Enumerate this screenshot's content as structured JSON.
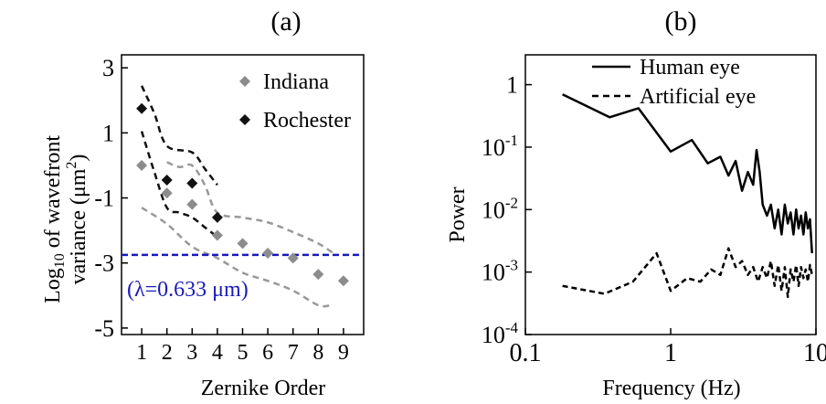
{
  "chart_data": [
    {
      "panel_label": "(a)",
      "type": "scatter",
      "xlabel": "Zernike Order",
      "ylabel_line1_pre": "Log",
      "ylabel_line1_sub": "10",
      "ylabel_line1_post": " of wavefront",
      "ylabel_line2_pre": "variance (μm",
      "ylabel_line2_sup": "2",
      "ylabel_line2_post": ")",
      "xlim": [
        0.2,
        9.8
      ],
      "ylim": [
        -5.2,
        3.4
      ],
      "x_ticks": [
        1,
        2,
        3,
        4,
        5,
        6,
        7,
        8,
        9
      ],
      "y_ticks": [
        3,
        1,
        -1,
        -3,
        -5
      ],
      "legend_position": "top-right",
      "series": [
        {
          "name": "Indiana",
          "marker": "diamond",
          "color": "#8c8c8c",
          "x": [
            1,
            2,
            3,
            4,
            5,
            6,
            7,
            8,
            9
          ],
          "y": [
            0.0,
            -0.85,
            -1.2,
            -2.15,
            -2.4,
            -2.7,
            -2.85,
            -3.35,
            -3.55
          ],
          "band": {
            "color": "#999999",
            "upper": [
              [
                2,
                0.1
              ],
              [
                2.5,
                -0.05
              ],
              [
                3,
                0.0
              ],
              [
                3.5,
                -0.6
              ],
              [
                4,
                -1.45
              ],
              [
                5,
                -1.6
              ],
              [
                6,
                -1.75
              ],
              [
                7,
                -2.05
              ],
              [
                8,
                -2.4
              ],
              [
                8.6,
                -2.7
              ]
            ],
            "lower": [
              [
                1,
                -1.3
              ],
              [
                2,
                -1.8
              ],
              [
                3,
                -2.5
              ],
              [
                4,
                -2.85
              ],
              [
                5,
                -3.3
              ],
              [
                6,
                -3.55
              ],
              [
                7,
                -3.85
              ],
              [
                8,
                -4.3
              ],
              [
                8.5,
                -4.3
              ]
            ]
          }
        },
        {
          "name": "Rochester",
          "marker": "diamond",
          "color": "#111111",
          "x": [
            1,
            2,
            3,
            4
          ],
          "y": [
            1.75,
            -0.45,
            -0.55,
            -1.6
          ],
          "band": {
            "color": "#111111",
            "upper": [
              [
                1,
                2.45
              ],
              [
                1.5,
                1.6
              ],
              [
                2,
                0.6
              ],
              [
                3,
                0.4
              ],
              [
                3.5,
                -0.1
              ],
              [
                4,
                -0.6
              ]
            ],
            "lower": [
              [
                1,
                1.05
              ],
              [
                1.5,
                -0.2
              ],
              [
                2,
                -1.3
              ],
              [
                2.5,
                -1.45
              ],
              [
                3,
                -1.6
              ],
              [
                3.5,
                -1.9
              ],
              [
                4,
                -2.2
              ]
            ]
          }
        }
      ],
      "reference_line": {
        "y": -2.75,
        "color": "#1a1ab8",
        "label": "(λ=0.633 μm)"
      }
    },
    {
      "panel_label": "(b)",
      "type": "line",
      "xlabel": "Frequency (Hz)",
      "ylabel": "Power",
      "x_scale": "log",
      "y_scale": "log",
      "xlim": [
        0.1,
        10
      ],
      "ylim": [
        0.0001,
        3
      ],
      "x_ticks": [
        "0.1",
        "1",
        "10"
      ],
      "y_ticks": [
        {
          "base": "1",
          "exp": ""
        },
        {
          "base": "10",
          "exp": "-1"
        },
        {
          "base": "10",
          "exp": "-2"
        },
        {
          "base": "10",
          "exp": "-3"
        },
        {
          "base": "10",
          "exp": "-4"
        }
      ],
      "legend_position": "top-right",
      "series": [
        {
          "name": "Human eye",
          "style": "solid",
          "color": "#000000",
          "x": [
            0.18,
            0.38,
            0.6,
            1.0,
            1.4,
            1.8,
            2.2,
            2.5,
            2.8,
            3.1,
            3.4,
            3.7,
            3.9,
            4.1,
            4.3,
            4.6,
            4.9,
            5.2,
            5.5,
            5.8,
            6.1,
            6.4,
            6.7,
            7.0,
            7.3,
            7.6,
            7.9,
            8.2,
            8.5,
            8.8,
            9.1,
            9.4
          ],
          "y": [
            0.7,
            0.3,
            0.42,
            0.085,
            0.13,
            0.055,
            0.07,
            0.035,
            0.06,
            0.02,
            0.04,
            0.025,
            0.09,
            0.04,
            0.012,
            0.008,
            0.012,
            0.005,
            0.01,
            0.004,
            0.012,
            0.006,
            0.009,
            0.004,
            0.01,
            0.005,
            0.008,
            0.004,
            0.009,
            0.005,
            0.007,
            0.002
          ]
        },
        {
          "name": "Artificial eye",
          "style": "dashed",
          "color": "#000000",
          "x": [
            0.18,
            0.35,
            0.55,
            0.8,
            1.0,
            1.3,
            1.6,
            1.9,
            2.2,
            2.5,
            2.8,
            3.1,
            3.4,
            3.7,
            4.0,
            4.3,
            4.6,
            4.9,
            5.2,
            5.5,
            5.8,
            6.1,
            6.4,
            6.7,
            7.0,
            7.3,
            7.6,
            7.9,
            8.2,
            8.5,
            8.8,
            9.1,
            9.4
          ],
          "y": [
            0.0006,
            0.00045,
            0.0007,
            0.002,
            0.0005,
            0.0008,
            0.0007,
            0.0011,
            0.0009,
            0.0024,
            0.0012,
            0.0015,
            0.0009,
            0.0012,
            0.0007,
            0.0012,
            0.0008,
            0.0015,
            0.0006,
            0.0013,
            0.0005,
            0.0012,
            0.0004,
            0.0011,
            0.0007,
            0.0013,
            0.0006,
            0.0012,
            0.0008,
            0.0011,
            0.0007,
            0.0013,
            0.0009
          ]
        }
      ]
    }
  ]
}
